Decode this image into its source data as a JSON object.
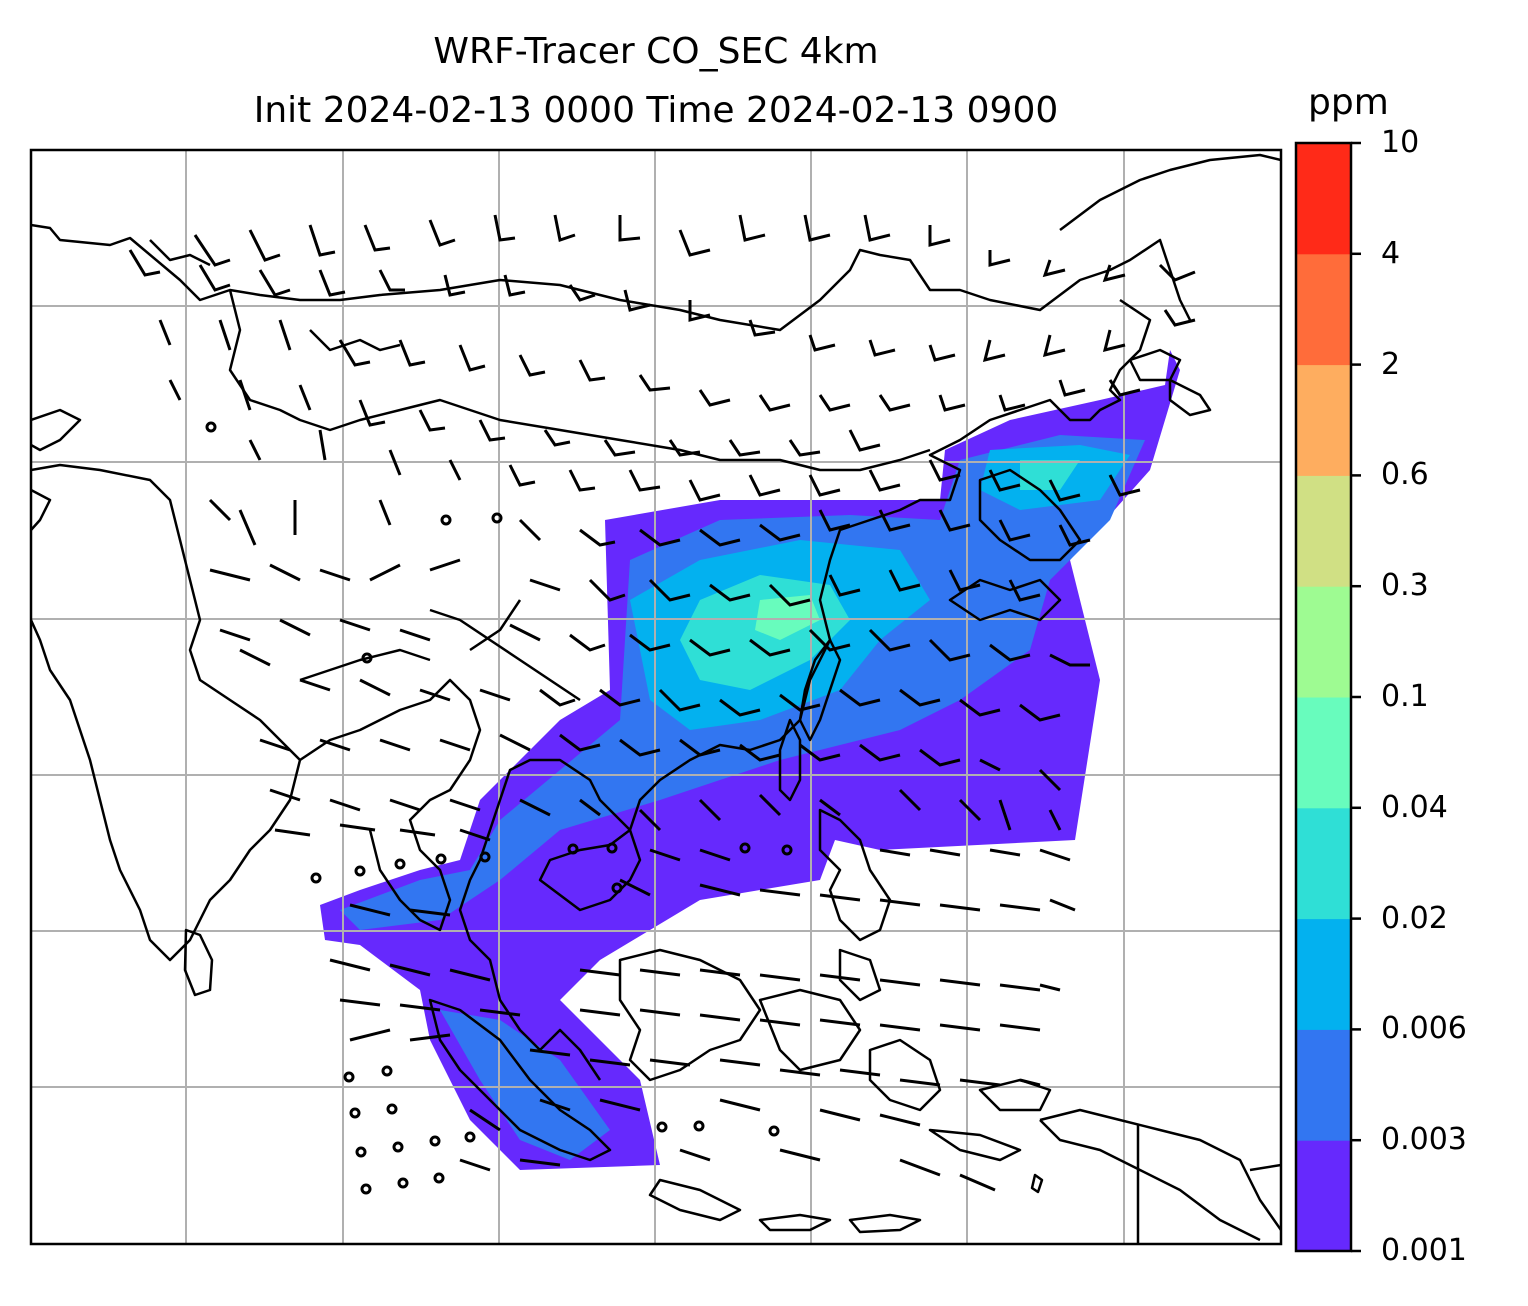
{
  "title": {
    "line1": "WRF-Tracer CO_SEC 4km",
    "line2": "Init 2024-02-13 0000 Time 2024-02-13 0900"
  },
  "colorbar": {
    "unit": "ppm",
    "levels": [
      "0.001",
      "0.003",
      "0.006",
      "0.02",
      "0.04",
      "0.1",
      "0.3",
      "0.6",
      "2",
      "4",
      "10"
    ],
    "colors": [
      "#6629fd",
      "#3276f1",
      "#03b1ef",
      "#2fdfd6",
      "#68fcbd",
      "#9efb92",
      "#d0e084",
      "#fead5f",
      "#ff6c3a",
      "#ff2a18"
    ]
  },
  "map": {
    "field": "CO_SEC tracer concentration",
    "features": [
      "coastlines",
      "country-borders",
      "gridlines",
      "wind-barbs"
    ],
    "gridline_color": "#b0b0b0"
  }
}
